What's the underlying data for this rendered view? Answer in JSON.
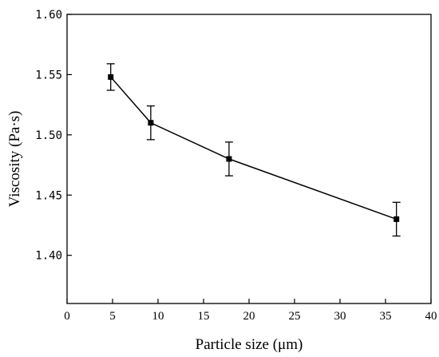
{
  "chart_data": {
    "type": "line",
    "title": "",
    "xlabel": "Particle size (μm)",
    "ylabel": "Viscosity (Pa·s)",
    "xlim": [
      0,
      40
    ],
    "ylim": [
      1.36,
      1.6
    ],
    "xticks": [
      0,
      5,
      10,
      15,
      20,
      25,
      30,
      35,
      40
    ],
    "xtick_labels": [
      "0",
      "5",
      "10",
      "15",
      "20",
      "25",
      "30",
      "35",
      "40"
    ],
    "yticks": [
      1.4,
      1.45,
      1.5,
      1.55,
      1.6
    ],
    "ytick_labels": [
      "1.40",
      "1.45",
      "1.50",
      "1.55",
      "1.60"
    ],
    "grid": false,
    "legend": false,
    "series": [
      {
        "x": [
          4.8,
          9.2,
          17.8,
          36.2
        ],
        "y": [
          1.548,
          1.51,
          1.48,
          1.43
        ],
        "yerr": [
          0.011,
          0.014,
          0.014,
          0.014
        ],
        "marker": "square",
        "color": "#000000"
      }
    ]
  }
}
